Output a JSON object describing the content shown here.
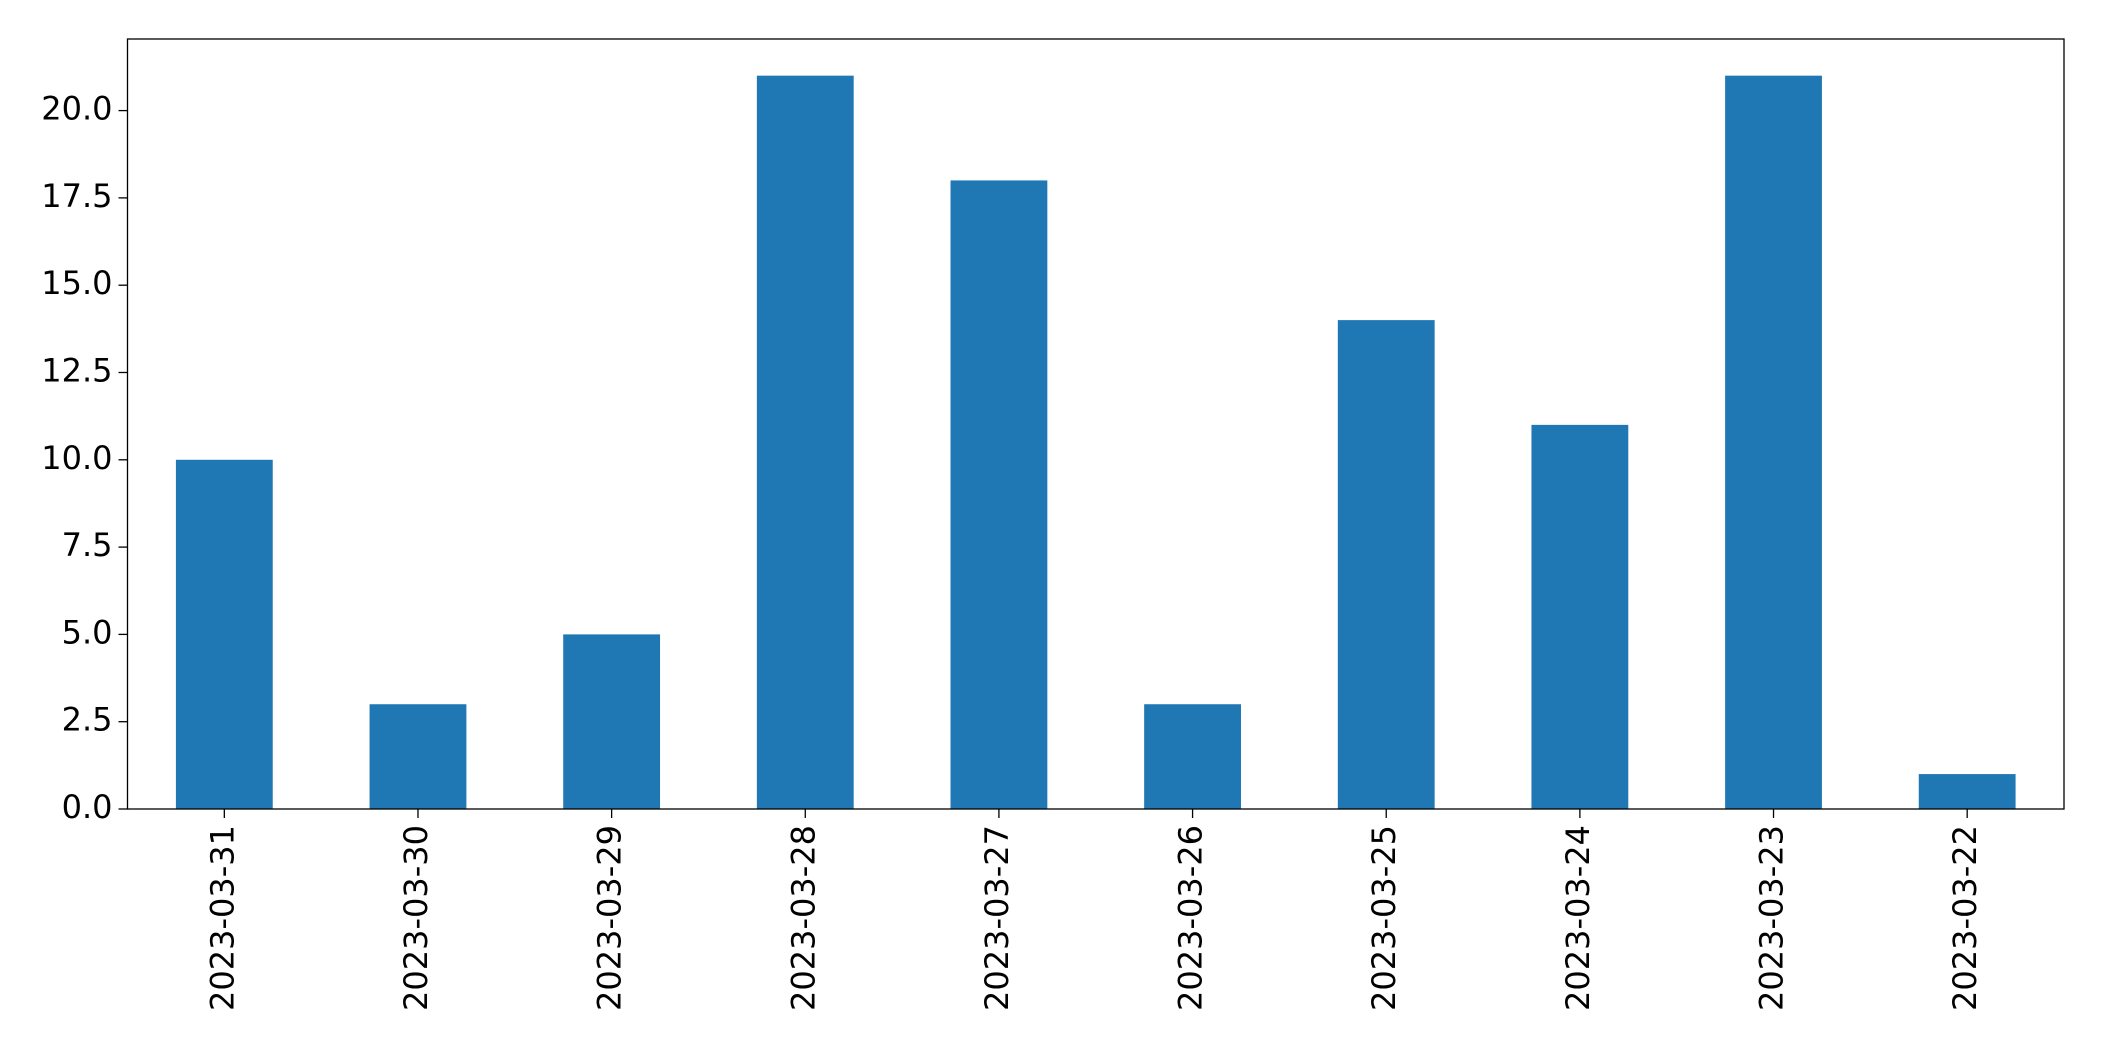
{
  "chart_data": {
    "type": "bar",
    "categories": [
      "2023-03-31",
      "2023-03-30",
      "2023-03-29",
      "2023-03-28",
      "2023-03-27",
      "2023-03-26",
      "2023-03-25",
      "2023-03-24",
      "2023-03-23",
      "2023-03-22"
    ],
    "values": [
      10,
      3,
      5,
      21,
      18,
      3,
      14,
      11,
      21,
      1
    ],
    "color": "#1f77b4",
    "ylim": [
      0,
      22.05
    ],
    "yticks": [
      {
        "value": 0,
        "label": "0.0"
      },
      2.5,
      {
        "value": 5,
        "label": "5.0"
      },
      7.5,
      {
        "value": 10,
        "label": "10.0"
      },
      12.5,
      {
        "value": 15,
        "label": "15.0"
      },
      17.5,
      {
        "value": 20,
        "label": "20.0"
      }
    ],
    "grid": false
  }
}
